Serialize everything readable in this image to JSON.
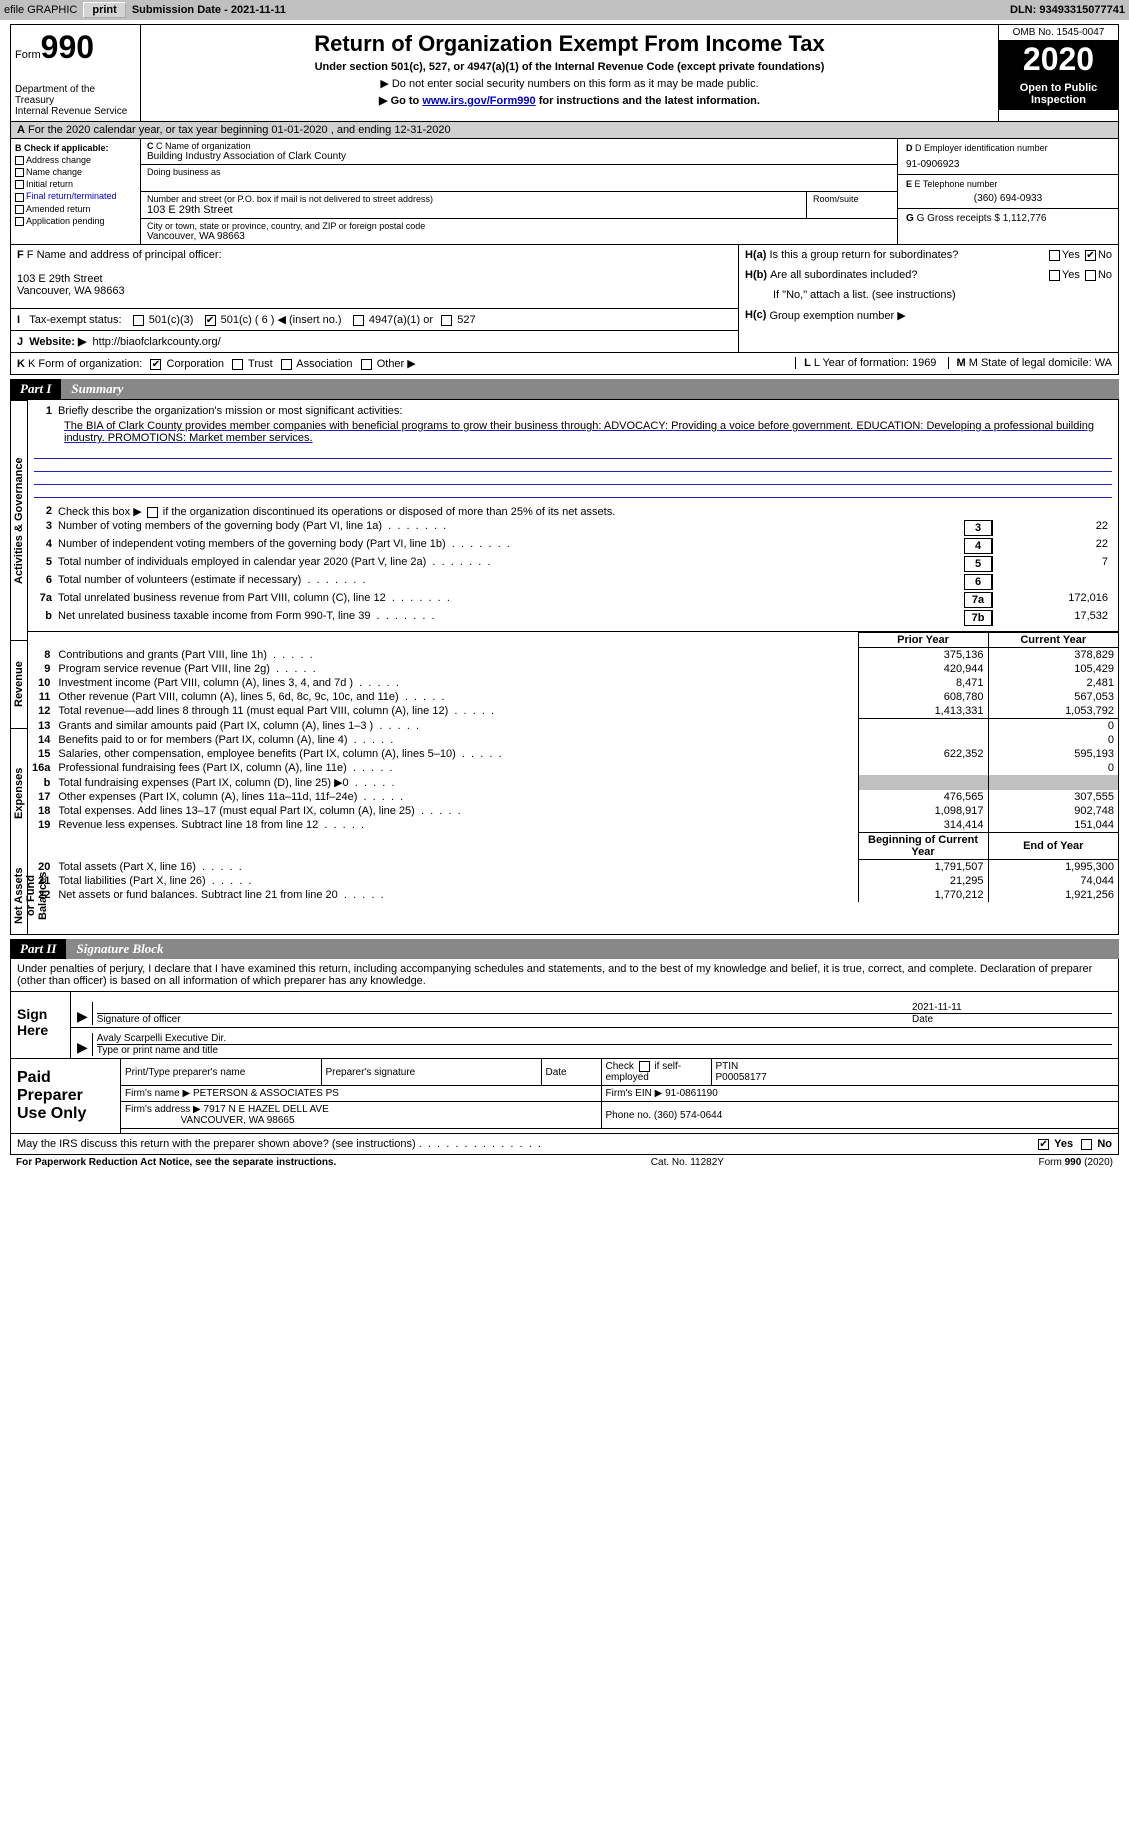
{
  "top_bar": {
    "efile_label": "efile GRAPHIC",
    "print_btn": "print",
    "sub_date_label": "Submission Date - ",
    "sub_date": "2021-11-11",
    "dln_label": "DLN: ",
    "dln": "93493315077741"
  },
  "header": {
    "form_label": "Form",
    "form_num": "990",
    "dept": "Department of the Treasury\nInternal Revenue Service",
    "title": "Return of Organization Exempt From Income Tax",
    "subtitle": "Under section 501(c), 527, or 4947(a)(1) of the Internal Revenue Code (except private foundations)",
    "line1": "▶ Do not enter social security numbers on this form as it may be made public.",
    "line2_pre": "▶ Go to ",
    "line2_link": "www.irs.gov/Form990",
    "line2_post": " for instructions and the latest information.",
    "omb": "OMB No. 1545-0047",
    "year": "2020",
    "inspect": "Open to Public Inspection"
  },
  "line_a": "For the 2020 calendar year, or tax year beginning 01-01-2020  , and ending 12-31-2020",
  "section_b": {
    "label": "B Check if applicable:",
    "items": [
      "Address change",
      "Name change",
      "Initial return",
      "Final return/terminated",
      "Amended return",
      "Application pending"
    ]
  },
  "section_c": {
    "name_label": "C Name of organization",
    "name": "Building Industry Association of Clark County",
    "dba_label": "Doing business as",
    "street_label": "Number and street (or P.O. box if mail is not delivered to street address)",
    "street": "103 E 29th Street",
    "suite_label": "Room/suite",
    "city_label": "City or town, state or province, country, and ZIP or foreign postal code",
    "city": "Vancouver, WA  98663"
  },
  "section_d": {
    "label": "D Employer identification number",
    "value": "91-0906923"
  },
  "section_e": {
    "label": "E Telephone number",
    "value": "(360) 694-0933"
  },
  "section_g": {
    "label": "G Gross receipts $ ",
    "value": "1,112,776"
  },
  "section_f": {
    "label": "F Name and address of principal officer:",
    "addr1": "103 E 29th Street",
    "addr2": "Vancouver, WA  98663"
  },
  "section_h": {
    "a_label": "Is this a group return for subordinates?",
    "a_pre": "H(a)",
    "b_label": "Are all subordinates included?",
    "b_pre": "H(b)",
    "note": "If \"No,\" attach a list. (see instructions)",
    "c_label": "Group exemption number ▶",
    "c_pre": "H(c)",
    "yes": "Yes",
    "no": "No"
  },
  "section_i": {
    "label": "Tax-exempt status:",
    "opt1": "501(c)(3)",
    "opt2": "501(c) ( 6 ) ◀ (insert no.)",
    "opt3": "4947(a)(1) or",
    "opt4": "527"
  },
  "section_j": {
    "label": "Website: ▶",
    "value": "http://biaofclarkcounty.org/"
  },
  "section_k": {
    "label": "K Form of organization:",
    "opts": [
      "Corporation",
      "Trust",
      "Association",
      "Other ▶"
    ]
  },
  "section_l": {
    "label": "L Year of formation: ",
    "value": "1969"
  },
  "section_m": {
    "label": "M State of legal domicile: ",
    "value": "WA"
  },
  "part1": {
    "num": "Part I",
    "title": "Summary",
    "vtabs": {
      "gov": "Activities & Governance",
      "rev": "Revenue",
      "exp": "Expenses",
      "net": "Net Assets or Fund Balances"
    },
    "q1": "Briefly describe the organization's mission or most significant activities:",
    "mission": "The BIA of Clark County provides member companies with beneficial programs to grow their business through: ADVOCACY: Providing a voice before government. EDUCATION: Developing a professional building industry. PROMOTIONS: Market member services.",
    "q2": "Check this box ▶",
    "q2b": "if the organization discontinued its operations or disposed of more than 25% of its net assets.",
    "rows_top": [
      {
        "n": "3",
        "d": "Number of voting members of the governing body (Part VI, line 1a)",
        "box": "3",
        "val": "22"
      },
      {
        "n": "4",
        "d": "Number of independent voting members of the governing body (Part VI, line 1b)",
        "box": "4",
        "val": "22"
      },
      {
        "n": "5",
        "d": "Total number of individuals employed in calendar year 2020 (Part V, line 2a)",
        "box": "5",
        "val": "7"
      },
      {
        "n": "6",
        "d": "Total number of volunteers (estimate if necessary)",
        "box": "6",
        "val": ""
      },
      {
        "n": "7a",
        "d": "Total unrelated business revenue from Part VIII, column (C), line 12",
        "box": "7a",
        "val": "172,016"
      },
      {
        "n": "b",
        "d": "Net unrelated business taxable income from Form 990-T, line 39",
        "box": "7b",
        "val": "17,532"
      }
    ],
    "th_py": "Prior Year",
    "th_cy": "Current Year",
    "rows_rev": [
      {
        "n": "8",
        "d": "Contributions and grants (Part VIII, line 1h)",
        "py": "375,136",
        "cy": "378,829"
      },
      {
        "n": "9",
        "d": "Program service revenue (Part VIII, line 2g)",
        "py": "420,944",
        "cy": "105,429"
      },
      {
        "n": "10",
        "d": "Investment income (Part VIII, column (A), lines 3, 4, and 7d )",
        "py": "8,471",
        "cy": "2,481"
      },
      {
        "n": "11",
        "d": "Other revenue (Part VIII, column (A), lines 5, 6d, 8c, 9c, 10c, and 11e)",
        "py": "608,780",
        "cy": "567,053"
      },
      {
        "n": "12",
        "d": "Total revenue—add lines 8 through 11 (must equal Part VIII, column (A), line 12)",
        "py": "1,413,331",
        "cy": "1,053,792"
      }
    ],
    "rows_exp": [
      {
        "n": "13",
        "d": "Grants and similar amounts paid (Part IX, column (A), lines 1–3 )",
        "py": "",
        "cy": "0"
      },
      {
        "n": "14",
        "d": "Benefits paid to or for members (Part IX, column (A), line 4)",
        "py": "",
        "cy": "0"
      },
      {
        "n": "15",
        "d": "Salaries, other compensation, employee benefits (Part IX, column (A), lines 5–10)",
        "py": "622,352",
        "cy": "595,193"
      },
      {
        "n": "16a",
        "d": "Professional fundraising fees (Part IX, column (A), line 11e)",
        "py": "",
        "cy": "0"
      },
      {
        "n": "b",
        "d": "Total fundraising expenses (Part IX, column (D), line 25) ▶0",
        "py": "shade",
        "cy": "shade"
      },
      {
        "n": "17",
        "d": "Other expenses (Part IX, column (A), lines 11a–11d, 11f–24e)",
        "py": "476,565",
        "cy": "307,555"
      },
      {
        "n": "18",
        "d": "Total expenses. Add lines 13–17 (must equal Part IX, column (A), line 25)",
        "py": "1,098,917",
        "cy": "902,748"
      },
      {
        "n": "19",
        "d": "Revenue less expenses. Subtract line 18 from line 12",
        "py": "314,414",
        "cy": "151,044"
      }
    ],
    "th_by": "Beginning of Current Year",
    "th_ey": "End of Year",
    "rows_net": [
      {
        "n": "20",
        "d": "Total assets (Part X, line 16)",
        "py": "1,791,507",
        "cy": "1,995,300"
      },
      {
        "n": "21",
        "d": "Total liabilities (Part X, line 26)",
        "py": "21,295",
        "cy": "74,044"
      },
      {
        "n": "22",
        "d": "Net assets or fund balances. Subtract line 21 from line 20",
        "py": "1,770,212",
        "cy": "1,921,256"
      }
    ]
  },
  "part2": {
    "num": "Part II",
    "title": "Signature Block",
    "declaration": "Under penalties of perjury, I declare that I have examined this return, including accompanying schedules and statements, and to the best of my knowledge and belief, it is true, correct, and complete. Declaration of preparer (other than officer) is based on all information of which preparer has any knowledge.",
    "sign_here": "Sign Here",
    "sig_officer": "Signature of officer",
    "date_label": "Date",
    "sig_date": "2021-11-11",
    "officer_name": "Avaly Scarpelli  Executive Dir.",
    "name_title_label": "Type or print name and title",
    "paid_prep": "Paid Preparer Use Only",
    "pt_name": "Print/Type preparer's name",
    "pt_sig": "Preparer's signature",
    "pt_date": "Date",
    "pt_self": "Check",
    "pt_self2": "if self-employed",
    "ptin_label": "PTIN",
    "ptin": "P00058177",
    "firm_name_label": "Firm's name    ▶",
    "firm_name": "PETERSON & ASSOCIATES PS",
    "firm_ein_label": "Firm's EIN ▶",
    "firm_ein": "91-0861190",
    "firm_addr_label": "Firm's address ▶",
    "firm_addr1": "7917 N E HAZEL DELL AVE",
    "firm_addr2": "VANCOUVER, WA  98665",
    "phone_label": "Phone no. ",
    "phone": "(360) 574-0644",
    "may_discuss": "May the IRS discuss this return with the preparer shown above? (see instructions)",
    "yes": "Yes",
    "no": "No"
  },
  "footer": {
    "left": "For Paperwork Reduction Act Notice, see the separate instructions.",
    "mid": "Cat. No. 11282Y",
    "right": "Form 990 (2020)"
  },
  "colors": {
    "header_gray": "#c0c0c0",
    "link_blue": "#0000cc",
    "line_blue": "#2020c0"
  }
}
